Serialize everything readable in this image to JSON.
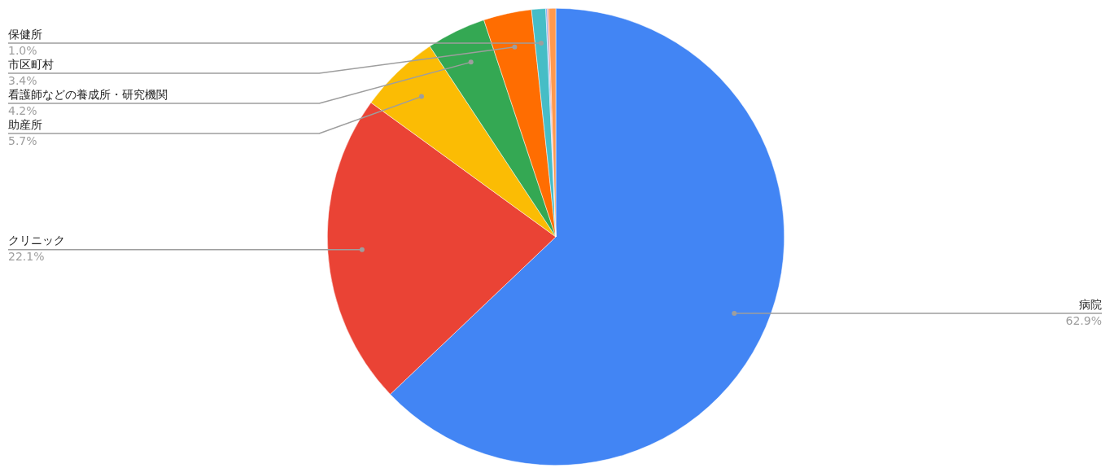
{
  "chart_data": {
    "type": "pie",
    "categories": [
      "病院",
      "クリニック",
      "助産所",
      "看護師などの養成所・研究機関",
      "市区町村",
      "保健所",
      null,
      null,
      null
    ],
    "values": [
      62.9,
      22.1,
      5.7,
      4.2,
      3.4,
      1.0,
      0.1,
      0.1,
      0.5
    ],
    "colors": [
      "#4285f4",
      "#ea4335",
      "#fbbc04",
      "#34a853",
      "#ff6d01",
      "#46bdc6",
      "#7baaf7",
      "#f07b72",
      "#ff994d"
    ],
    "value_labels": [
      "62.9%",
      "22.1%",
      "5.7%",
      "4.2%",
      "3.4%",
      "1.0%",
      null,
      null,
      null
    ],
    "legend": false
  }
}
